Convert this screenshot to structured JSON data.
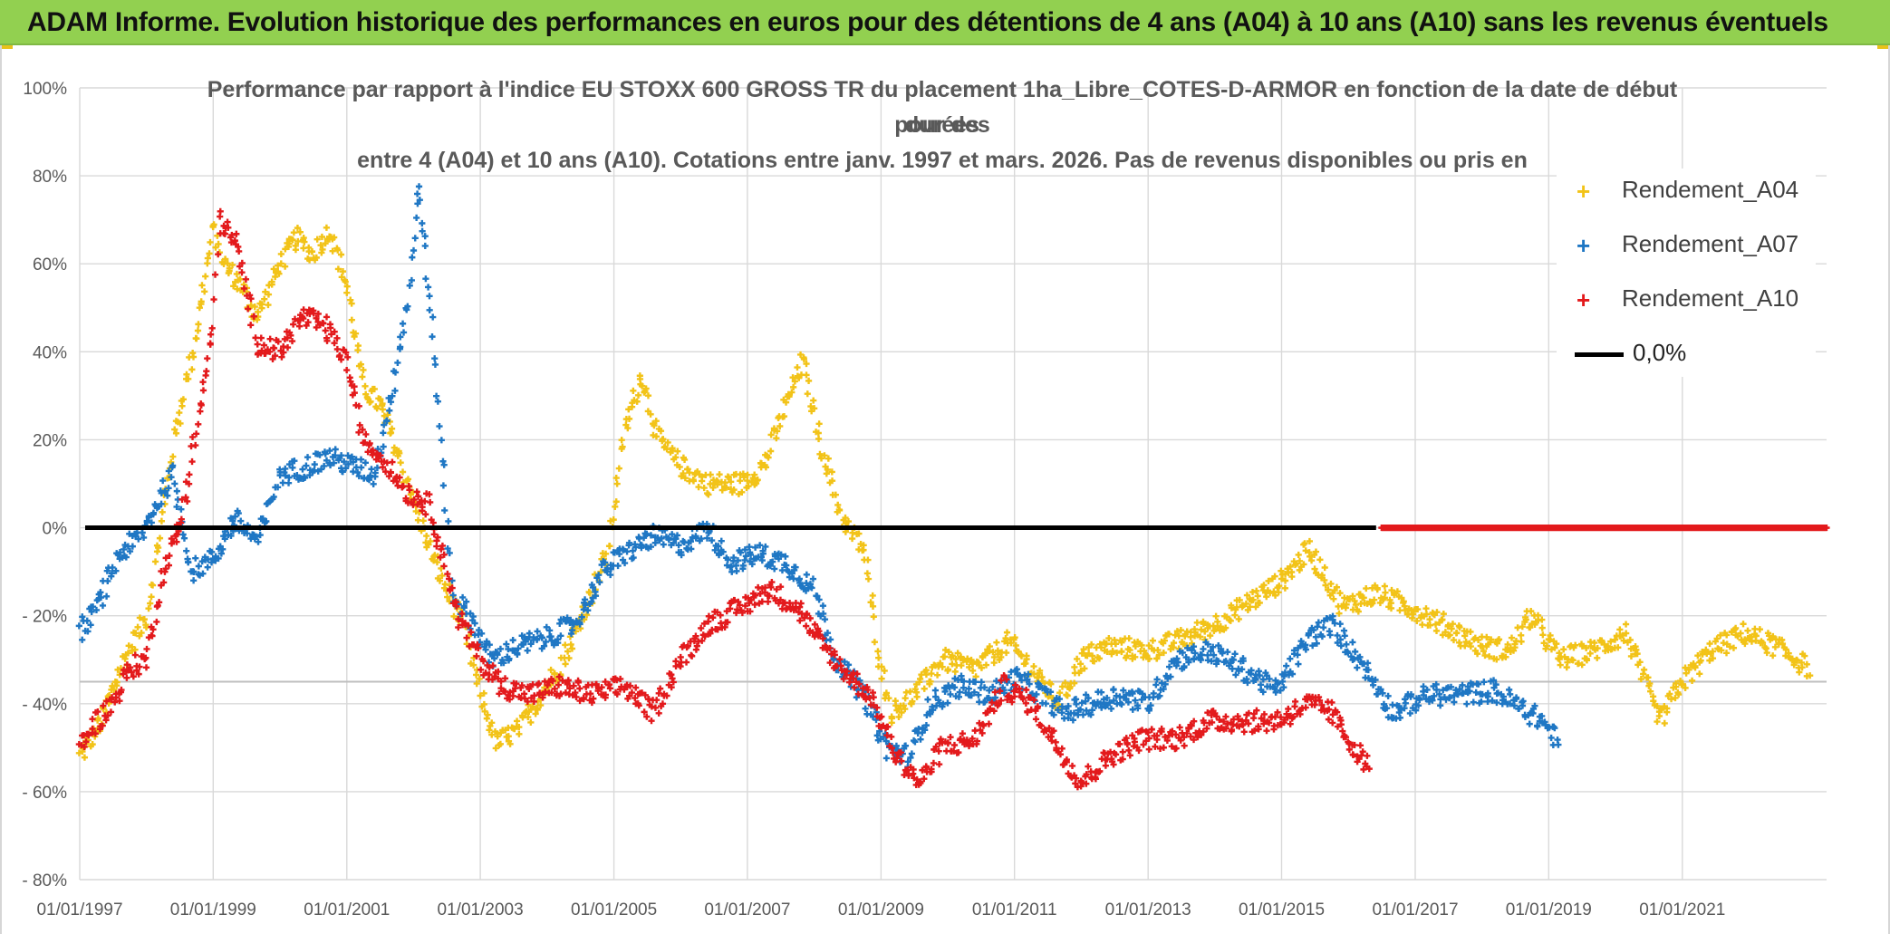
{
  "banner": {
    "title": "ADAM Informe. Evolution historique des performances en euros pour des détentions de 4 ans (A04) à 10 ans (A10) sans les revenus éventuels"
  },
  "chart_data": {
    "type": "scatter",
    "title_lines": [
      "Performance par rapport à l'indice EU STOXX 600 GROSS TR  du placement 1ha_Libre_COTES-D-ARMOR en fonction de la date de début pour des",
      "durées",
      "entre 4 (A04) et 10 ans (A10). Cotations entre janv. 1997 et mars. 2026. Pas de revenus disponibles ou pris en"
    ],
    "x_range": [
      "1997-01-01",
      "2023-03-01"
    ],
    "x_ticks": [
      "01/01/1997",
      "01/01/1999",
      "01/01/2001",
      "01/01/2003",
      "01/01/2005",
      "01/01/2007",
      "01/01/2009",
      "01/01/2011",
      "01/01/2013",
      "01/01/2015",
      "01/01/2017",
      "01/01/2019",
      "01/01/2021"
    ],
    "y_range": [
      -0.8,
      1.0
    ],
    "y_ticks": [
      "100%",
      "80%",
      "60%",
      "40%",
      "20%",
      "0%",
      "- 20%",
      "- 40%",
      "- 60%",
      "- 80%"
    ],
    "y_tick_values": [
      1.0,
      0.8,
      0.6,
      0.4,
      0.2,
      0.0,
      -0.2,
      -0.4,
      -0.6,
      -0.8
    ],
    "grid": true,
    "reference_line": {
      "name": "0,0%",
      "y": 0.0,
      "color": "#000000"
    },
    "extra_hline": -0.35,
    "legend_position": "top-right",
    "series": [
      {
        "name": "Rendement_A04",
        "color": "#f2c318",
        "points": [
          [
            "1997-01-01",
            -0.52
          ],
          [
            "1997-05-01",
            -0.44
          ],
          [
            "1997-09-01",
            -0.3
          ],
          [
            "1998-01-01",
            -0.2
          ],
          [
            "1998-03-01",
            -0.05
          ],
          [
            "1998-06-01",
            0.2
          ],
          [
            "1998-09-01",
            0.38
          ],
          [
            "1998-11-01",
            0.52
          ],
          [
            "1999-01-01",
            0.68
          ],
          [
            "1999-03-01",
            0.6
          ],
          [
            "1999-06-01",
            0.55
          ],
          [
            "1999-09-01",
            0.48
          ],
          [
            "2000-01-01",
            0.6
          ],
          [
            "2000-04-01",
            0.66
          ],
          [
            "2000-07-01",
            0.62
          ],
          [
            "2000-10-01",
            0.68
          ],
          [
            "2001-01-01",
            0.55
          ],
          [
            "2001-04-01",
            0.32
          ],
          [
            "2001-07-01",
            0.28
          ],
          [
            "2001-10-01",
            0.18
          ],
          [
            "2002-01-01",
            0.06
          ],
          [
            "2002-04-01",
            -0.05
          ],
          [
            "2002-07-01",
            -0.14
          ],
          [
            "2002-10-01",
            -0.22
          ],
          [
            "2003-01-01",
            -0.38
          ],
          [
            "2003-04-01",
            -0.49
          ],
          [
            "2003-08-01",
            -0.46
          ],
          [
            "2003-12-01",
            -0.38
          ],
          [
            "2004-04-01",
            -0.3
          ],
          [
            "2004-09-01",
            -0.15
          ],
          [
            "2004-12-01",
            -0.05
          ],
          [
            "2005-03-01",
            0.22
          ],
          [
            "2005-06-01",
            0.35
          ],
          [
            "2005-09-01",
            0.2
          ],
          [
            "2006-01-01",
            0.14
          ],
          [
            "2006-06-01",
            0.1
          ],
          [
            "2006-12-01",
            0.1
          ],
          [
            "2007-04-01",
            0.14
          ],
          [
            "2007-08-01",
            0.28
          ],
          [
            "2007-11-01",
            0.38
          ],
          [
            "2008-02-01",
            0.2
          ],
          [
            "2008-06-01",
            0.02
          ],
          [
            "2008-10-01",
            -0.05
          ],
          [
            "2009-01-01",
            -0.32
          ],
          [
            "2009-03-01",
            -0.42
          ],
          [
            "2009-07-01",
            -0.38
          ],
          [
            "2009-12-01",
            -0.3
          ],
          [
            "2010-06-01",
            -0.32
          ],
          [
            "2010-12-01",
            -0.26
          ],
          [
            "2011-04-01",
            -0.32
          ],
          [
            "2011-09-01",
            -0.4
          ],
          [
            "2012-01-01",
            -0.3
          ],
          [
            "2012-06-01",
            -0.27
          ],
          [
            "2013-01-01",
            -0.28
          ],
          [
            "2013-06-01",
            -0.26
          ],
          [
            "2014-01-01",
            -0.22
          ],
          [
            "2014-06-01",
            -0.18
          ],
          [
            "2015-01-01",
            -0.12
          ],
          [
            "2015-06-01",
            -0.05
          ],
          [
            "2015-12-01",
            -0.18
          ],
          [
            "2016-06-01",
            -0.15
          ],
          [
            "2016-12-01",
            -0.18
          ],
          [
            "2017-06-01",
            -0.22
          ],
          [
            "2018-01-01",
            -0.27
          ],
          [
            "2018-06-01",
            -0.28
          ],
          [
            "2018-10-01",
            -0.2
          ],
          [
            "2019-03-01",
            -0.3
          ],
          [
            "2019-09-01",
            -0.28
          ],
          [
            "2020-03-01",
            -0.24
          ],
          [
            "2020-09-01",
            -0.44
          ],
          [
            "2021-01-01",
            -0.35
          ],
          [
            "2021-06-01",
            -0.28
          ],
          [
            "2021-12-01",
            -0.24
          ],
          [
            "2022-06-01",
            -0.27
          ],
          [
            "2022-12-01",
            -0.32
          ]
        ]
      },
      {
        "name": "Rendement_A07",
        "color": "#1f77c4",
        "points": [
          [
            "1997-01-01",
            -0.24
          ],
          [
            "1997-05-01",
            -0.16
          ],
          [
            "1997-08-01",
            -0.06
          ],
          [
            "1997-12-01",
            -0.02
          ],
          [
            "1998-03-01",
            0.06
          ],
          [
            "1998-06-01",
            0.12
          ],
          [
            "1998-09-01",
            -0.1
          ],
          [
            "1999-01-01",
            -0.07
          ],
          [
            "1999-05-01",
            0.02
          ],
          [
            "1999-09-01",
            -0.03
          ],
          [
            "2000-01-01",
            0.12
          ],
          [
            "2000-06-01",
            0.14
          ],
          [
            "2000-10-01",
            0.16
          ],
          [
            "2001-02-01",
            0.14
          ],
          [
            "2001-06-01",
            0.12
          ],
          [
            "2001-09-01",
            0.3
          ],
          [
            "2001-12-01",
            0.52
          ],
          [
            "2002-02-01",
            0.78
          ],
          [
            "2002-05-01",
            0.36
          ],
          [
            "2002-08-01",
            -0.15
          ],
          [
            "2002-12-01",
            -0.22
          ],
          [
            "2003-03-01",
            -0.3
          ],
          [
            "2003-08-01",
            -0.27
          ],
          [
            "2004-01-01",
            -0.25
          ],
          [
            "2004-06-01",
            -0.22
          ],
          [
            "2004-11-01",
            -0.1
          ],
          [
            "2005-03-01",
            -0.06
          ],
          [
            "2005-08-01",
            -0.02
          ],
          [
            "2006-01-01",
            -0.04
          ],
          [
            "2006-06-01",
            0.0
          ],
          [
            "2006-10-01",
            -0.08
          ],
          [
            "2007-03-01",
            -0.06
          ],
          [
            "2007-08-01",
            -0.08
          ],
          [
            "2008-01-01",
            -0.14
          ],
          [
            "2008-05-01",
            -0.3
          ],
          [
            "2008-10-01",
            -0.38
          ],
          [
            "2009-02-01",
            -0.5
          ],
          [
            "2009-06-01",
            -0.52
          ],
          [
            "2009-10-01",
            -0.4
          ],
          [
            "2010-03-01",
            -0.36
          ],
          [
            "2010-09-01",
            -0.38
          ],
          [
            "2011-01-01",
            -0.34
          ],
          [
            "2011-06-01",
            -0.38
          ],
          [
            "2011-10-01",
            -0.42
          ],
          [
            "2012-03-01",
            -0.4
          ],
          [
            "2012-08-01",
            -0.38
          ],
          [
            "2013-01-01",
            -0.4
          ],
          [
            "2013-06-01",
            -0.3
          ],
          [
            "2013-12-01",
            -0.28
          ],
          [
            "2014-06-01",
            -0.32
          ],
          [
            "2014-12-01",
            -0.37
          ],
          [
            "2015-06-01",
            -0.25
          ],
          [
            "2015-10-01",
            -0.22
          ],
          [
            "2016-03-01",
            -0.3
          ],
          [
            "2016-09-01",
            -0.42
          ],
          [
            "2017-03-01",
            -0.38
          ],
          [
            "2017-09-01",
            -0.38
          ],
          [
            "2018-03-01",
            -0.37
          ],
          [
            "2018-07-01",
            -0.4
          ],
          [
            "2018-12-01",
            -0.44
          ],
          [
            "2019-03-01",
            -0.49
          ]
        ]
      },
      {
        "name": "Rendement_A10",
        "color": "#e31a1c",
        "points": [
          [
            "1997-01-01",
            -0.5
          ],
          [
            "1997-04-01",
            -0.44
          ],
          [
            "1997-07-01",
            -0.4
          ],
          [
            "1997-10-01",
            -0.32
          ],
          [
            "1998-01-01",
            -0.3
          ],
          [
            "1998-04-01",
            -0.1
          ],
          [
            "1998-07-01",
            0.0
          ],
          [
            "1998-10-01",
            0.22
          ],
          [
            "1999-01-01",
            0.45
          ],
          [
            "1999-02-01",
            0.7
          ],
          [
            "1999-05-01",
            0.65
          ],
          [
            "1999-09-01",
            0.42
          ],
          [
            "2000-01-01",
            0.4
          ],
          [
            "2000-05-01",
            0.48
          ],
          [
            "2000-09-01",
            0.46
          ],
          [
            "2001-01-01",
            0.38
          ],
          [
            "2001-04-01",
            0.2
          ],
          [
            "2001-08-01",
            0.15
          ],
          [
            "2001-12-01",
            0.08
          ],
          [
            "2002-04-01",
            0.05
          ],
          [
            "2002-09-01",
            -0.2
          ],
          [
            "2003-01-01",
            -0.3
          ],
          [
            "2003-05-01",
            -0.36
          ],
          [
            "2003-10-01",
            -0.38
          ],
          [
            "2004-03-01",
            -0.36
          ],
          [
            "2004-09-01",
            -0.38
          ],
          [
            "2005-03-01",
            -0.36
          ],
          [
            "2005-08-01",
            -0.42
          ],
          [
            "2006-01-01",
            -0.3
          ],
          [
            "2006-06-01",
            -0.22
          ],
          [
            "2006-12-01",
            -0.18
          ],
          [
            "2007-05-01",
            -0.14
          ],
          [
            "2007-10-01",
            -0.18
          ],
          [
            "2008-02-01",
            -0.26
          ],
          [
            "2008-06-01",
            -0.32
          ],
          [
            "2008-11-01",
            -0.38
          ],
          [
            "2009-04-01",
            -0.52
          ],
          [
            "2009-08-01",
            -0.58
          ],
          [
            "2009-12-01",
            -0.5
          ],
          [
            "2010-06-01",
            -0.48
          ],
          [
            "2010-11-01",
            -0.36
          ],
          [
            "2011-04-01",
            -0.4
          ],
          [
            "2011-09-01",
            -0.5
          ],
          [
            "2012-01-01",
            -0.58
          ],
          [
            "2012-06-01",
            -0.52
          ],
          [
            "2012-12-01",
            -0.48
          ],
          [
            "2013-06-01",
            -0.48
          ],
          [
            "2013-12-01",
            -0.44
          ],
          [
            "2014-06-01",
            -0.44
          ],
          [
            "2014-12-01",
            -0.44
          ],
          [
            "2015-06-01",
            -0.4
          ],
          [
            "2015-10-01",
            -0.42
          ],
          [
            "2016-02-01",
            -0.5
          ],
          [
            "2016-05-01",
            -0.55
          ]
        ],
        "zero_band": [
          "2016-07-01",
          "2023-03-01"
        ]
      }
    ]
  }
}
